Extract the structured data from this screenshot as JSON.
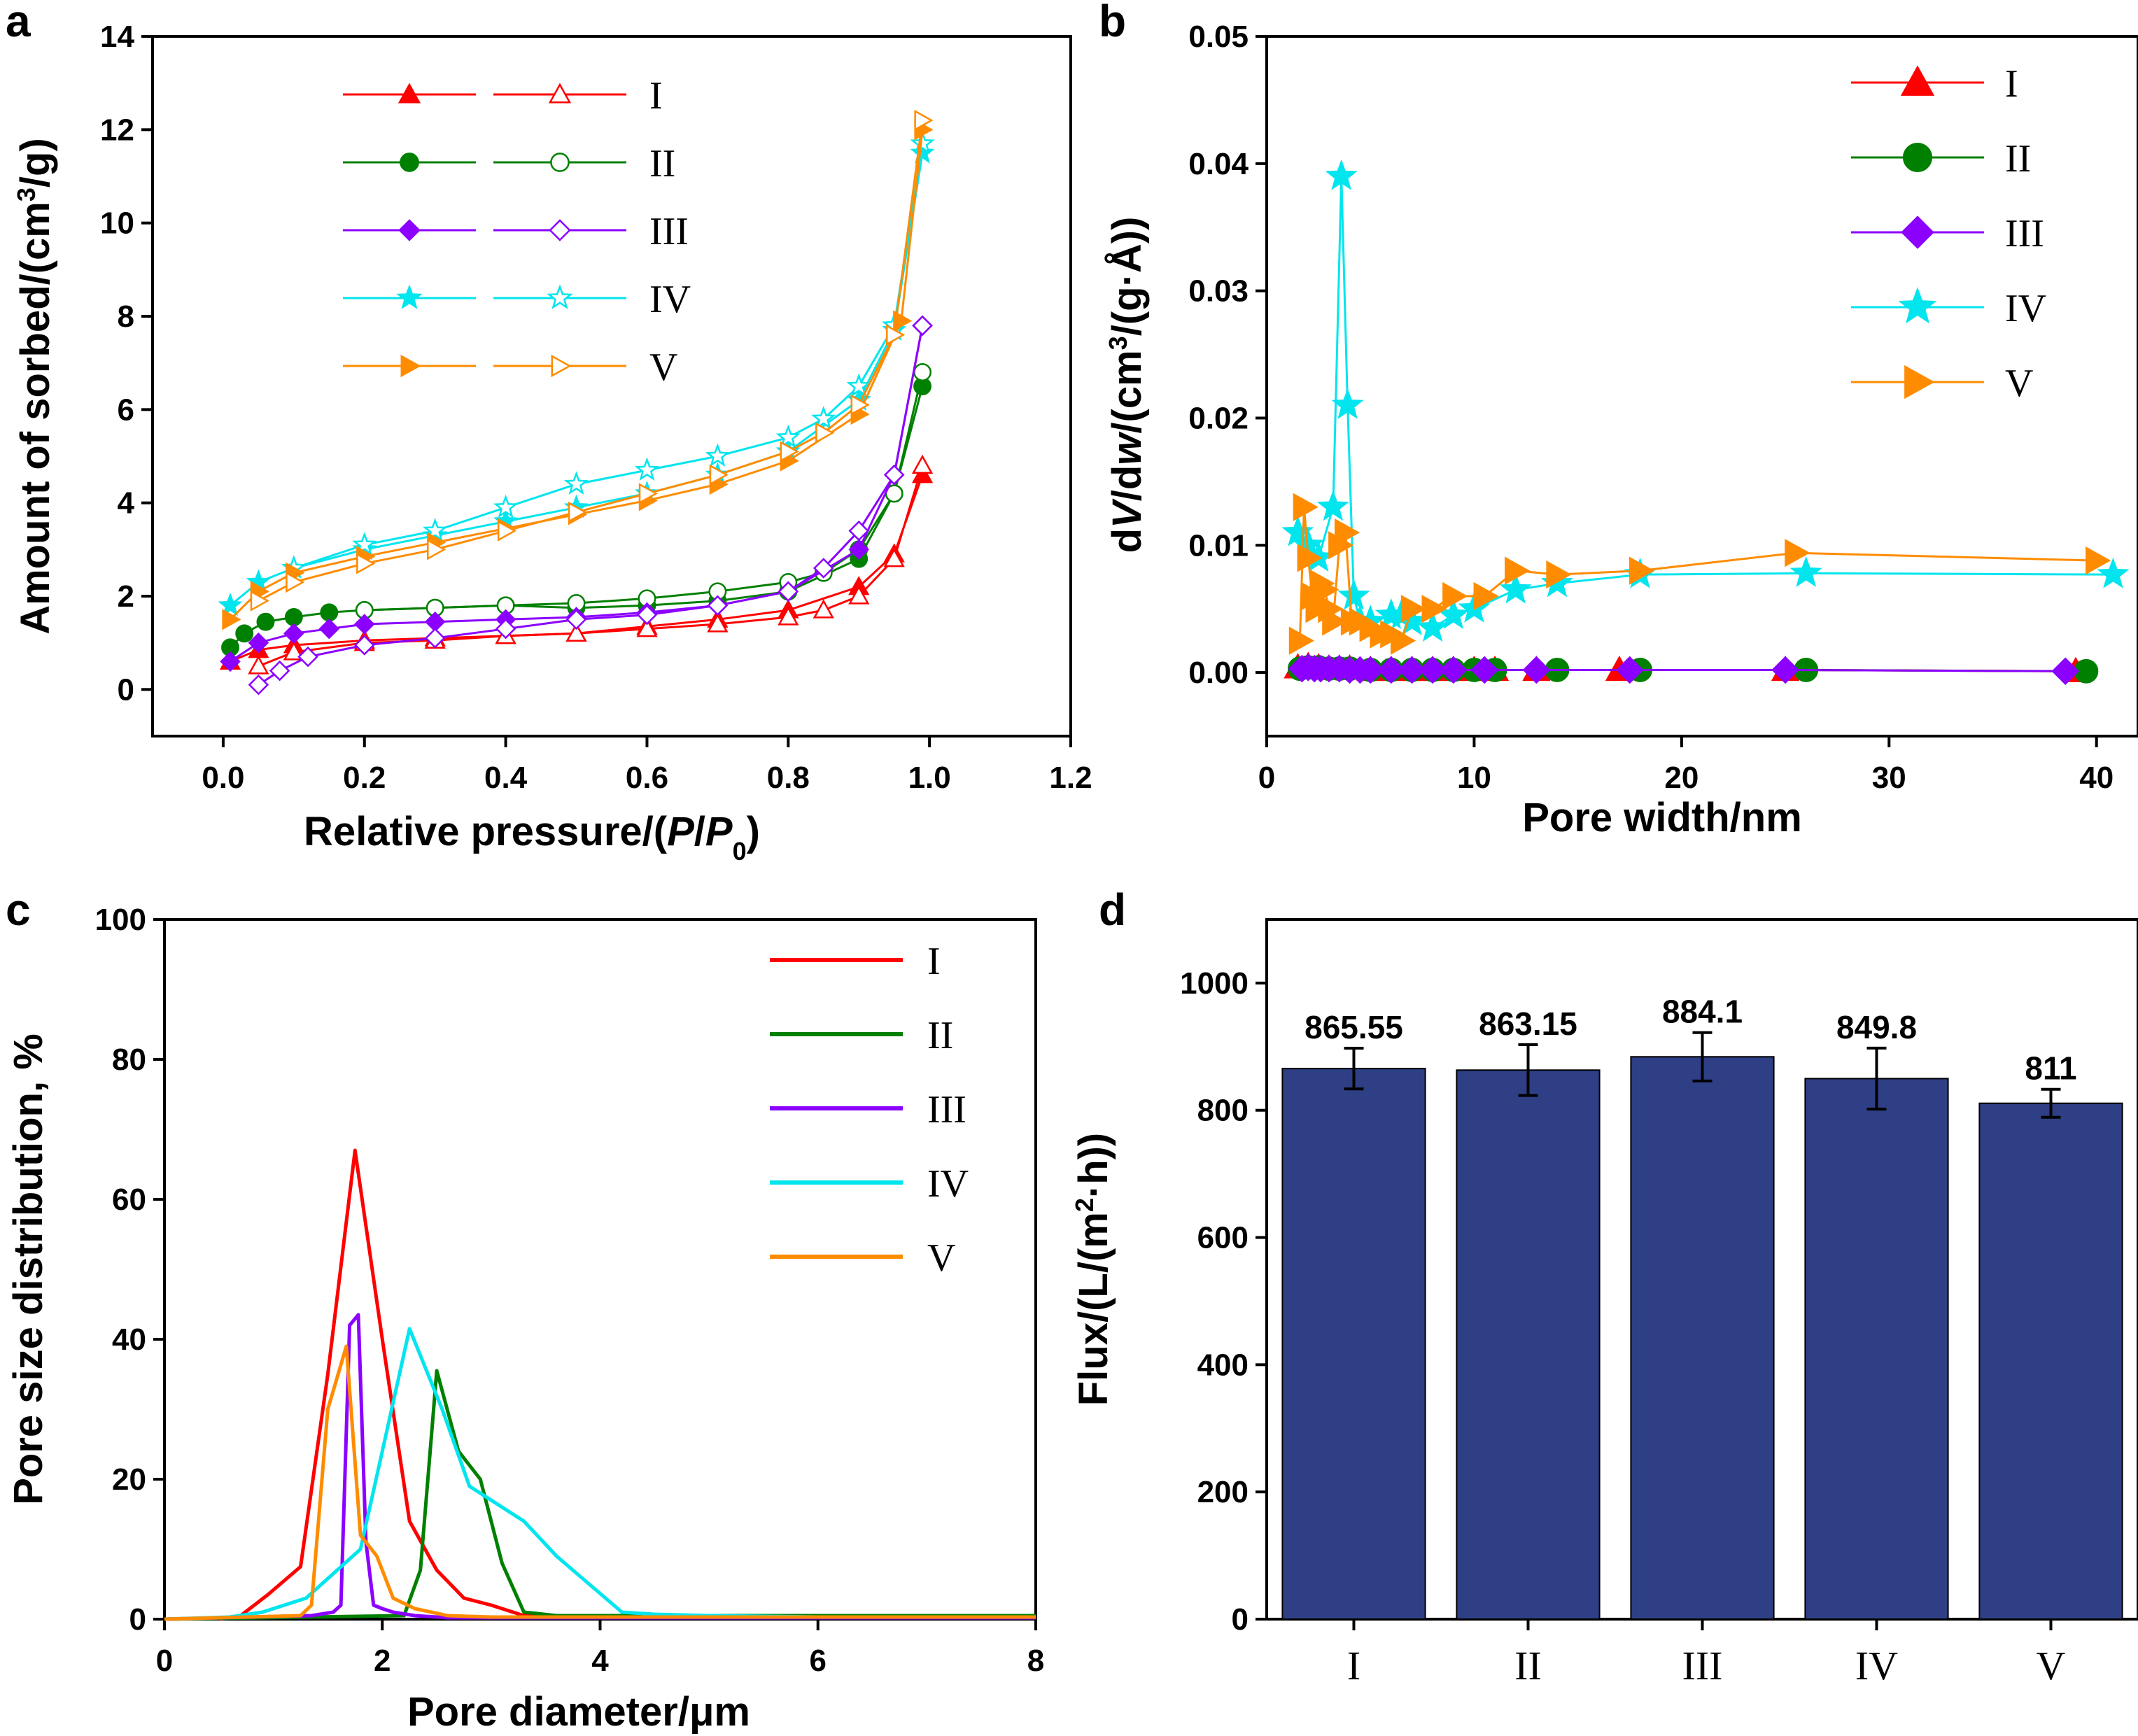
{
  "chart_data": [
    {
      "panel": "a",
      "type": "scatter",
      "xlabel": "Relative pressure/(P/P0)",
      "ylabel": "Amount of sorbed/(cm3/g)",
      "xlim": [
        -0.1,
        1.2
      ],
      "ylim": [
        -1,
        14
      ],
      "xticks": [
        "0.0",
        "0.2",
        "0.4",
        "0.6",
        "0.8",
        "1.0",
        "1.2"
      ],
      "yticks": [
        "0",
        "2",
        "4",
        "6",
        "8",
        "10",
        "12",
        "14"
      ],
      "legend": [
        "I",
        "II",
        "III",
        "IV",
        "V"
      ],
      "series": [
        {
          "name": "I",
          "color": "#ff0000",
          "marker": "triangle",
          "adsorption": {
            "x": [
              0.01,
              0.05,
              0.1,
              0.2,
              0.3,
              0.4,
              0.5,
              0.6,
              0.7,
              0.8,
              0.9,
              0.95,
              0.99
            ],
            "y": [
              0.6,
              0.85,
              0.95,
              1.05,
              1.1,
              1.15,
              1.2,
              1.35,
              1.5,
              1.7,
              2.2,
              2.9,
              4.6
            ]
          },
          "desorption": {
            "x": [
              0.99,
              0.95,
              0.9,
              0.85,
              0.8,
              0.7,
              0.6,
              0.5,
              0.4,
              0.3,
              0.2,
              0.1,
              0.05
            ],
            "y": [
              4.8,
              2.8,
              2.0,
              1.7,
              1.55,
              1.4,
              1.3,
              1.2,
              1.15,
              1.05,
              1.0,
              0.8,
              0.5
            ]
          }
        },
        {
          "name": "II",
          "color": "#008000",
          "marker": "circle",
          "adsorption": {
            "x": [
              0.01,
              0.03,
              0.06,
              0.1,
              0.15,
              0.2,
              0.3,
              0.4,
              0.5,
              0.6,
              0.7,
              0.8,
              0.9,
              0.95,
              0.99
            ],
            "y": [
              0.9,
              1.2,
              1.45,
              1.55,
              1.65,
              1.7,
              1.75,
              1.8,
              1.75,
              1.8,
              1.9,
              2.1,
              2.8,
              4.2,
              6.5
            ]
          },
          "desorption": {
            "x": [
              0.99,
              0.95,
              0.9,
              0.85,
              0.8,
              0.7,
              0.6,
              0.5,
              0.4,
              0.3,
              0.2
            ],
            "y": [
              6.8,
              4.2,
              3.0,
              2.5,
              2.3,
              2.1,
              1.95,
              1.85,
              1.8,
              1.75,
              1.7
            ]
          }
        },
        {
          "name": "III",
          "color": "#8b00ff",
          "marker": "diamond",
          "adsorption": {
            "x": [
              0.01,
              0.05,
              0.1,
              0.15,
              0.2,
              0.3,
              0.4,
              0.5,
              0.6,
              0.7,
              0.8,
              0.9,
              0.95,
              0.99
            ],
            "y": [
              0.6,
              1.0,
              1.2,
              1.3,
              1.4,
              1.45,
              1.5,
              1.55,
              1.65,
              1.8,
              2.1,
              3.0,
              4.6,
              7.8
            ]
          },
          "desorption": {
            "x": [
              0.99,
              0.95,
              0.9,
              0.85,
              0.8,
              0.7,
              0.6,
              0.5,
              0.4,
              0.3,
              0.2,
              0.12,
              0.08,
              0.05
            ],
            "y": [
              7.8,
              4.6,
              3.4,
              2.6,
              2.1,
              1.8,
              1.6,
              1.5,
              1.3,
              1.1,
              0.95,
              0.7,
              0.4,
              0.1
            ]
          }
        },
        {
          "name": "IV",
          "color": "#00e5ee",
          "marker": "star",
          "adsorption": {
            "x": [
              0.01,
              0.05,
              0.1,
              0.2,
              0.3,
              0.4,
              0.5,
              0.6,
              0.7,
              0.8,
              0.9,
              0.95,
              0.99
            ],
            "y": [
              1.8,
              2.3,
              2.6,
              3.0,
              3.3,
              3.6,
              3.9,
              4.2,
              4.6,
              5.1,
              6.2,
              7.7,
              11.5
            ]
          },
          "desorption": {
            "x": [
              0.99,
              0.95,
              0.9,
              0.85,
              0.8,
              0.7,
              0.6,
              0.5,
              0.4,
              0.3,
              0.2,
              0.1
            ],
            "y": [
              11.7,
              7.8,
              6.5,
              5.8,
              5.4,
              5.0,
              4.7,
              4.4,
              3.9,
              3.4,
              3.1,
              2.6
            ]
          }
        },
        {
          "name": "V",
          "color": "#ff8c00",
          "marker": "triangle-right",
          "adsorption": {
            "x": [
              0.01,
              0.05,
              0.1,
              0.2,
              0.3,
              0.4,
              0.5,
              0.6,
              0.7,
              0.8,
              0.9,
              0.96,
              0.99
            ],
            "y": [
              1.5,
              2.1,
              2.5,
              2.85,
              3.15,
              3.45,
              3.75,
              4.05,
              4.4,
              4.9,
              5.9,
              7.9,
              12.0
            ]
          },
          "desorption": {
            "x": [
              0.99,
              0.95,
              0.9,
              0.85,
              0.8,
              0.7,
              0.6,
              0.5,
              0.4,
              0.3,
              0.2,
              0.1,
              0.05
            ],
            "y": [
              12.2,
              7.6,
              6.1,
              5.5,
              5.1,
              4.6,
              4.2,
              3.8,
              3.4,
              3.0,
              2.7,
              2.3,
              1.9
            ]
          }
        }
      ]
    },
    {
      "panel": "b",
      "type": "line",
      "xlabel": "Pore width/nm",
      "ylabel": "dV/dw/(cm3/(g·Å))",
      "xlim": [
        0,
        42
      ],
      "ylim": [
        -0.005,
        0.05
      ],
      "xticks": [
        "0",
        "10",
        "20",
        "30",
        "40"
      ],
      "yticks": [
        "0.00",
        "0.01",
        "0.02",
        "0.03",
        "0.04",
        "0.05"
      ],
      "legend": [
        "I",
        "II",
        "III",
        "IV",
        "V"
      ],
      "series": [
        {
          "name": "I",
          "color": "#ff0000",
          "marker": "triangle",
          "x": [
            1.5,
            2,
            2.5,
            3,
            3.5,
            4,
            5,
            6,
            7,
            8,
            9,
            10,
            11,
            13,
            17,
            25,
            39
          ],
          "y": [
            0.0004,
            0.0005,
            0.0004,
            0.0003,
            0.0003,
            0.0003,
            0.0002,
            0.0002,
            0.0002,
            0.0002,
            0.0002,
            0.0002,
            0.0002,
            0.0002,
            0.0002,
            0.0002,
            0.0001
          ]
        },
        {
          "name": "II",
          "color": "#008000",
          "marker": "circle",
          "x": [
            1.6,
            2,
            2.5,
            3,
            3.5,
            4,
            5,
            6,
            7,
            8,
            9,
            10,
            11,
            14,
            18,
            26,
            39.5
          ],
          "y": [
            0.0003,
            0.0004,
            0.0004,
            0.0003,
            0.0003,
            0.0003,
            0.0002,
            0.0002,
            0.0002,
            0.0002,
            0.0002,
            0.0002,
            0.0002,
            0.0002,
            0.0002,
            0.0002,
            0.0001
          ]
        },
        {
          "name": "III",
          "color": "#8b00ff",
          "marker": "diamond",
          "x": [
            1.7,
            2,
            2.3,
            2.6,
            3,
            3.5,
            4,
            4.5,
            5,
            6,
            7,
            8,
            9,
            10.5,
            13,
            17.5,
            25,
            38.5
          ],
          "y": [
            0.0003,
            0.0004,
            0.0003,
            0.0003,
            0.0003,
            0.0003,
            0.0002,
            0.0002,
            0.0002,
            0.0002,
            0.0002,
            0.0002,
            0.0002,
            0.0002,
            0.0002,
            0.0002,
            0.0002,
            0.0001
          ]
        },
        {
          "name": "IV",
          "color": "#00e5ee",
          "marker": "star",
          "x": [
            1.5,
            2,
            2.5,
            3.2,
            3.6,
            3.9,
            4.2,
            4.5,
            5,
            6,
            6.5,
            7,
            8,
            9,
            10,
            12,
            14,
            18,
            26,
            40.8
          ],
          "y": [
            0.011,
            0.01,
            0.009,
            0.013,
            0.039,
            0.021,
            0.006,
            0.004,
            0.004,
            0.0045,
            0.0045,
            0.004,
            0.0035,
            0.0045,
            0.005,
            0.0065,
            0.007,
            0.0077,
            0.0078,
            0.0077
          ]
        },
        {
          "name": "V",
          "color": "#ff8c00",
          "marker": "triangle-right",
          "x": [
            1.6,
            1.8,
            2,
            2.2,
            2.4,
            2.6,
            2.8,
            3,
            3.2,
            3.5,
            3.8,
            4.1,
            4.5,
            5,
            5.5,
            6,
            6.5,
            7,
            8,
            9,
            10.5,
            12,
            14,
            18,
            25.5,
            40
          ],
          "y": [
            0.0025,
            0.013,
            0.009,
            0.006,
            0.005,
            0.007,
            0.0065,
            0.005,
            0.004,
            0.01,
            0.011,
            0.004,
            0.004,
            0.0035,
            0.003,
            0.003,
            0.0025,
            0.005,
            0.005,
            0.006,
            0.006,
            0.008,
            0.0077,
            0.008,
            0.0094,
            0.0088
          ]
        }
      ]
    },
    {
      "panel": "c",
      "type": "line",
      "xlabel": "Pore diameter/μm",
      "ylabel": "Pore size distribution,  %",
      "xlim": [
        0,
        8
      ],
      "ylim": [
        0,
        100
      ],
      "xticks": [
        "0",
        "2",
        "4",
        "6",
        "8"
      ],
      "yticks": [
        "0",
        "20",
        "40",
        "60",
        "80",
        "100"
      ],
      "legend": [
        "I",
        "II",
        "III",
        "IV",
        "V"
      ],
      "series": [
        {
          "name": "I",
          "color": "#ff0000",
          "x": [
            0.5,
            0.7,
            0.95,
            1.25,
            1.5,
            1.75,
            2.0,
            2.25,
            2.5,
            2.75,
            3.0,
            3.3,
            8
          ],
          "y": [
            0,
            0.5,
            3.5,
            7.5,
            35,
            67,
            40,
            14,
            7,
            3,
            2,
            0.5,
            0.5
          ]
        },
        {
          "name": "II",
          "color": "#008000",
          "x": [
            0,
            2.2,
            2.35,
            2.5,
            2.7,
            2.9,
            3.1,
            3.3,
            3.6,
            8
          ],
          "y": [
            0,
            0.5,
            7,
            35.5,
            24,
            20,
            8,
            1,
            0.5,
            0.5
          ]
        },
        {
          "name": "III",
          "color": "#8b00ff",
          "x": [
            0,
            1.35,
            1.55,
            1.62,
            1.7,
            1.78,
            1.85,
            1.92,
            2.0,
            2.1,
            2.3,
            2.6,
            8
          ],
          "y": [
            0,
            0.5,
            1,
            2,
            42,
            43.5,
            11,
            2,
            1.5,
            1,
            0.5,
            0.2,
            0.2
          ]
        },
        {
          "name": "IV",
          "color": "#00e5ee",
          "x": [
            0,
            0.6,
            0.9,
            1.3,
            1.8,
            2.0,
            2.25,
            2.55,
            2.8,
            3.0,
            3.3,
            3.6,
            4.2,
            4.5,
            5,
            6,
            7,
            8
          ],
          "y": [
            0,
            0.3,
            1,
            3,
            10,
            24,
            41.5,
            30,
            19,
            17,
            14,
            9,
            1,
            0.7,
            0.5,
            0.3,
            0.3,
            0.3
          ]
        },
        {
          "name": "V",
          "color": "#ff8c00",
          "x": [
            0,
            1.25,
            1.35,
            1.5,
            1.67,
            1.8,
            1.95,
            2.1,
            2.3,
            2.6,
            3.0,
            8
          ],
          "y": [
            0,
            0.5,
            2,
            30,
            39,
            12,
            9,
            3,
            1.5,
            0.5,
            0.3,
            0.3
          ]
        }
      ]
    },
    {
      "panel": "d",
      "type": "bar",
      "xlabel": "",
      "ylabel": "Flux/(L/(m2·h))",
      "ylim": [
        0,
        1100
      ],
      "yticks": [
        "0",
        "200",
        "400",
        "600",
        "800",
        "1000"
      ],
      "categories": [
        "I",
        "II",
        "III",
        "IV",
        "V"
      ],
      "values": [
        865.55,
        863.15,
        884.1,
        849.8,
        811
      ],
      "value_labels": [
        "865.55",
        "863.15",
        "884.1",
        "849.8",
        "811"
      ],
      "errors": [
        32,
        40,
        38,
        48,
        22
      ],
      "bar_color": "#2e3f85"
    }
  ]
}
